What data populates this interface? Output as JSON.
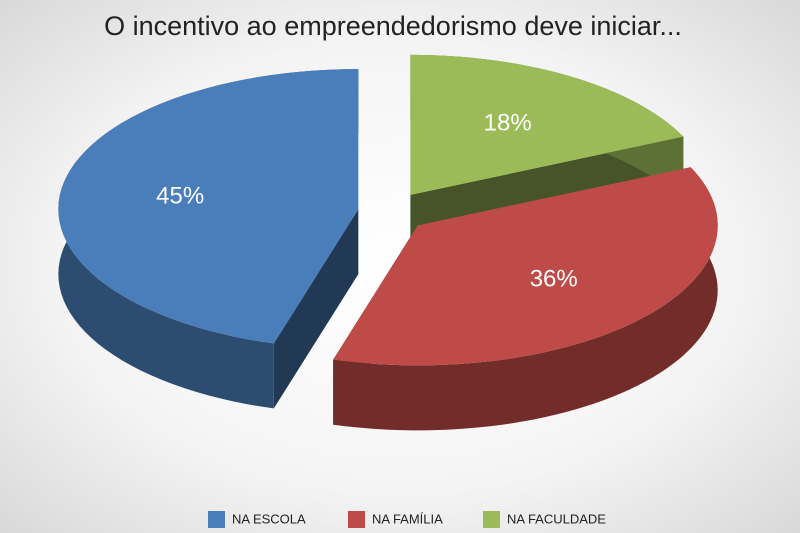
{
  "chart_data": {
    "type": "pie",
    "title": "O incentivo ao empreendedorismo deve iniciar...",
    "categories": [
      "NA ESCOLA",
      "NA FAMÍLIA",
      "NA FACULDADE"
    ],
    "values": [
      45,
      36,
      18
    ],
    "value_labels": [
      "45%",
      "36%",
      "18%"
    ],
    "colors": [
      "#4a7ebb",
      "#be4b48",
      "#9bbb59"
    ],
    "legend": "bottom"
  }
}
